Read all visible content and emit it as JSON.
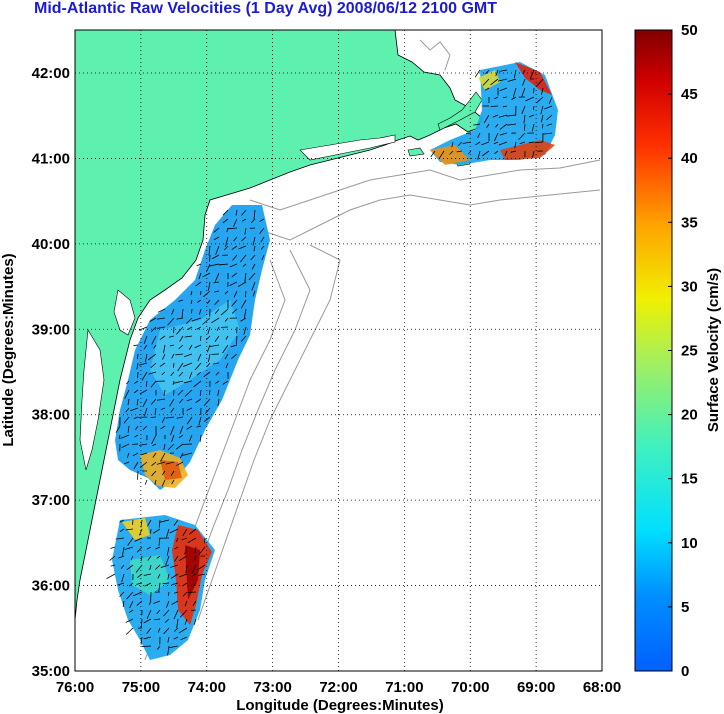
{
  "title": "Mid-Atlantic Raw Velocities (1 Day Avg) 2008/06/12 2100 GMT",
  "map": {
    "xlabel": "Longitude (Degrees:Minutes)",
    "ylabel": "Latitude (Degrees:Minutes)",
    "x_ticks": [
      "76:00",
      "75:00",
      "74:00",
      "73:00",
      "72:00",
      "71:00",
      "70:00",
      "69:00",
      "68:00"
    ],
    "y_ticks": [
      "42:00",
      "41:00",
      "40:00",
      "39:00",
      "38:00",
      "37:00",
      "36:00",
      "35:00"
    ],
    "land_color": "#5ef0ae",
    "grid": true
  },
  "colorbar": {
    "label": "Surface Velocity (cm/s)",
    "ticks": [
      "50",
      "45",
      "40",
      "35",
      "30",
      "25",
      "20",
      "15",
      "10",
      "5",
      "0"
    ],
    "min": 0,
    "max": 50,
    "colormap": "jet"
  }
}
